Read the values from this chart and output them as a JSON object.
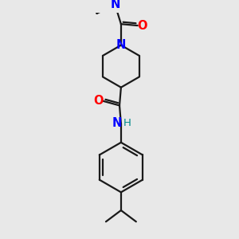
{
  "bg_color": "#e8e8e8",
  "bond_color": "#1a1a1a",
  "N_color": "#0000ff",
  "O_color": "#ff0000",
  "H_color": "#008b8b",
  "line_width": 1.6,
  "font_size_atom": 10.5,
  "fig_size": [
    3.0,
    3.0
  ],
  "dpi": 100,
  "xlim": [
    0,
    300
  ],
  "ylim": [
    0,
    300
  ]
}
